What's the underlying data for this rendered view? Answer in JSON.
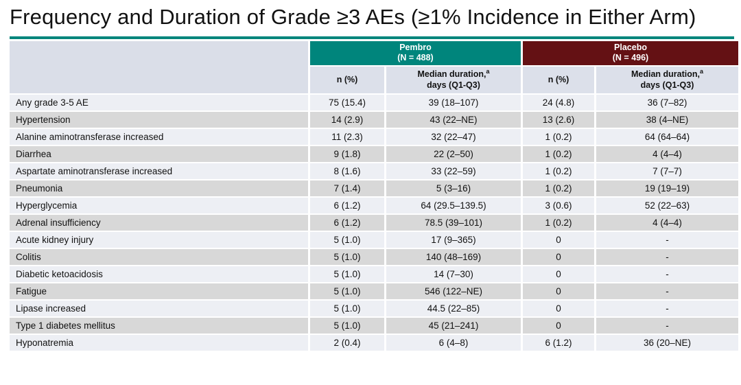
{
  "slide": {
    "title": "Frequency and Duration of Grade ≥3 AEs (≥1% Incidence in Either Arm)"
  },
  "colors": {
    "accent_teal": "#00857C",
    "pembro_header": "#00857C",
    "placebo_header": "#641114",
    "corner_bg": "#DADEE8",
    "subheader_bg": "#DCE0EA",
    "row_light": "#EDEFF4",
    "row_dark": "#D8D8D8",
    "text_color": "#111111"
  },
  "table": {
    "groups": [
      {
        "label": "Pembro",
        "n_label": "(N = 488)"
      },
      {
        "label": "Placebo",
        "n_label": "(N = 496)"
      }
    ],
    "subheader": {
      "n_pct": "n (%)",
      "duration_line1": "Median duration,",
      "duration_sup": "a",
      "duration_line2": "days (Q1-Q3)"
    },
    "rows": [
      {
        "name": "Any grade 3-5 AE",
        "pembro_n": "75 (15.4)",
        "pembro_duration": "39 (18–107)",
        "placebo_n": "24 (4.8)",
        "placebo_duration": "36 (7–82)"
      },
      {
        "name": "Hypertension",
        "pembro_n": "14 (2.9)",
        "pembro_duration": "43 (22–NE)",
        "placebo_n": "13 (2.6)",
        "placebo_duration": "38 (4–NE)"
      },
      {
        "name": "Alanine aminotransferase increased",
        "pembro_n": "11 (2.3)",
        "pembro_duration": "32 (22–47)",
        "placebo_n": "1 (0.2)",
        "placebo_duration": "64 (64–64)"
      },
      {
        "name": "Diarrhea",
        "pembro_n": "9 (1.8)",
        "pembro_duration": "22 (2–50)",
        "placebo_n": "1 (0.2)",
        "placebo_duration": "4 (4–4)"
      },
      {
        "name": "Aspartate aminotransferase increased",
        "pembro_n": "8 (1.6)",
        "pembro_duration": "33 (22–59)",
        "placebo_n": "1 (0.2)",
        "placebo_duration": "7 (7–7)"
      },
      {
        "name": "Pneumonia",
        "pembro_n": "7 (1.4)",
        "pembro_duration": "5 (3–16)",
        "placebo_n": "1 (0.2)",
        "placebo_duration": "19 (19–19)"
      },
      {
        "name": "Hyperglycemia",
        "pembro_n": "6 (1.2)",
        "pembro_duration": "64 (29.5–139.5)",
        "placebo_n": "3 (0.6)",
        "placebo_duration": "52 (22–63)"
      },
      {
        "name": "Adrenal insufficiency",
        "pembro_n": "6 (1.2)",
        "pembro_duration": "78.5 (39–101)",
        "placebo_n": "1 (0.2)",
        "placebo_duration": "4 (4–4)"
      },
      {
        "name": "Acute kidney injury",
        "pembro_n": "5 (1.0)",
        "pembro_duration": "17 (9–365)",
        "placebo_n": "0",
        "placebo_duration": "-"
      },
      {
        "name": "Colitis",
        "pembro_n": "5 (1.0)",
        "pembro_duration": "140 (48–169)",
        "placebo_n": "0",
        "placebo_duration": "-"
      },
      {
        "name": "Diabetic ketoacidosis",
        "pembro_n": "5 (1.0)",
        "pembro_duration": "14 (7–30)",
        "placebo_n": "0",
        "placebo_duration": "-"
      },
      {
        "name": "Fatigue",
        "pembro_n": "5 (1.0)",
        "pembro_duration": "546 (122–NE)",
        "placebo_n": "0",
        "placebo_duration": "-"
      },
      {
        "name": "Lipase increased",
        "pembro_n": "5 (1.0)",
        "pembro_duration": "44.5 (22–85)",
        "placebo_n": "0",
        "placebo_duration": "-"
      },
      {
        "name": "Type 1 diabetes mellitus",
        "pembro_n": "5 (1.0)",
        "pembro_duration": "45 (21–241)",
        "placebo_n": "0",
        "placebo_duration": "-"
      },
      {
        "name": "Hyponatremia",
        "pembro_n": "2 (0.4)",
        "pembro_duration": "6 (4–8)",
        "placebo_n": "6 (1.2)",
        "placebo_duration": "36 (20–NE)"
      }
    ]
  }
}
